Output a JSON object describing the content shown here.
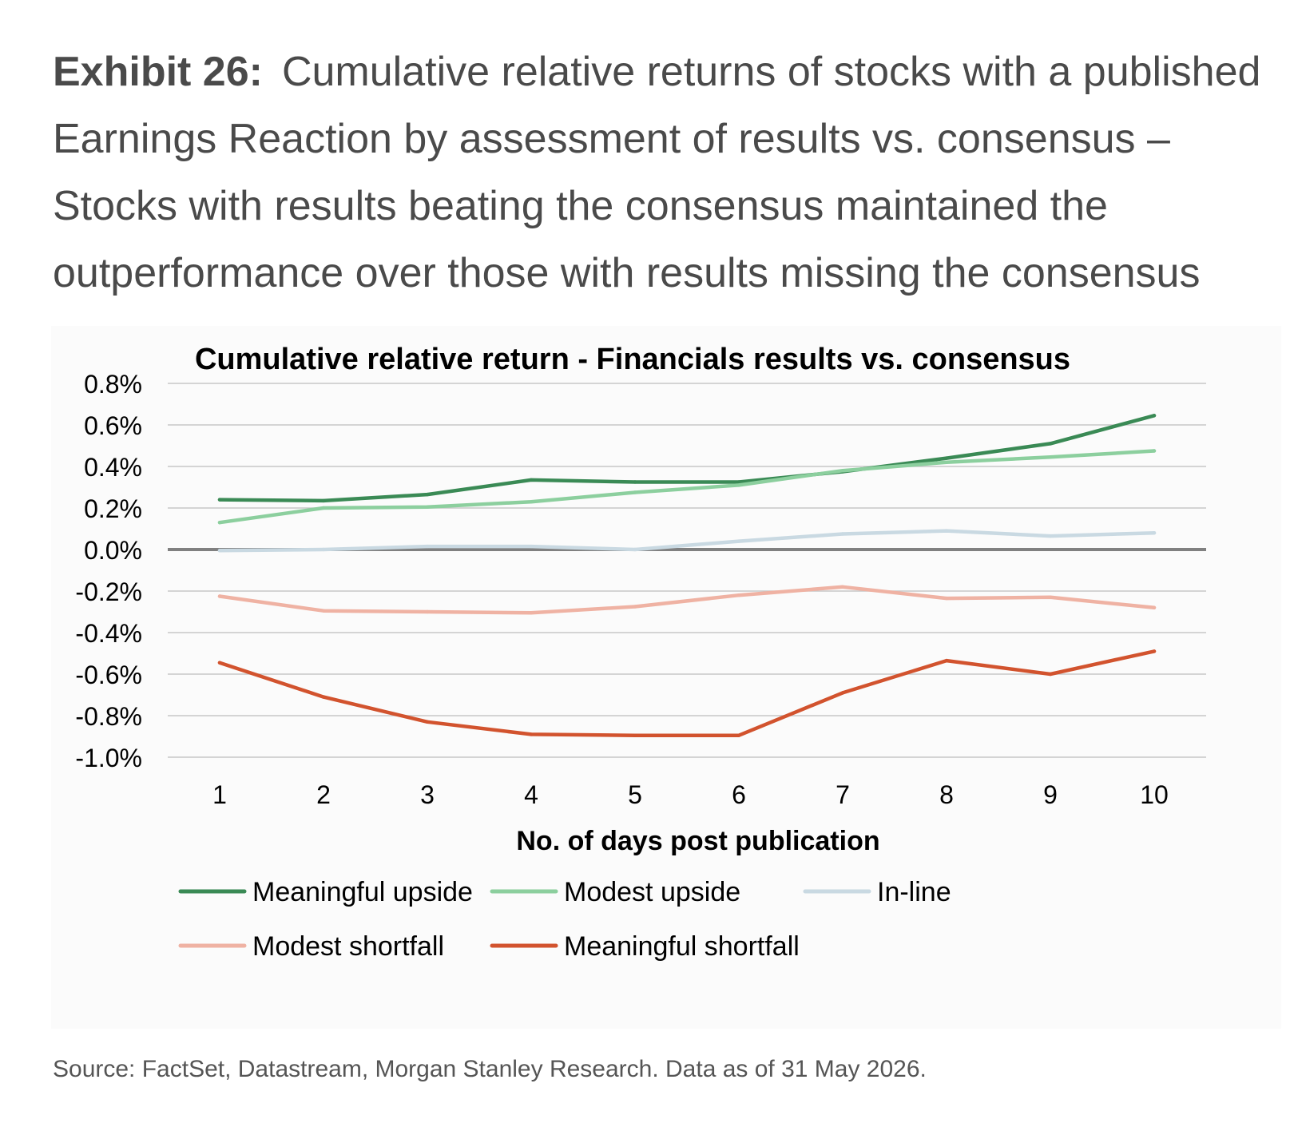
{
  "exhibit": {
    "label": "Exhibit 26:",
    "title": "Cumulative relative returns of stocks with a published Earnings Reaction by assessment of results vs. consensus – Stocks with results beating the consensus maintained the outperformance over those with results missing the consensus"
  },
  "chart_data": {
    "type": "line",
    "title": "Cumulative relative return - Financials results vs. consensus",
    "xlabel": "No. of days post publication",
    "ylabel": "",
    "x": [
      1,
      2,
      3,
      4,
      5,
      6,
      7,
      8,
      9,
      10
    ],
    "x_tick_labels": [
      "1",
      "2",
      "3",
      "4",
      "5",
      "6",
      "7",
      "8",
      "9",
      "10"
    ],
    "ylim": [
      -1.0,
      0.8
    ],
    "y_ticks": [
      0.8,
      0.6,
      0.4,
      0.2,
      0.0,
      -0.2,
      -0.4,
      -0.6,
      -0.8,
      -1.0
    ],
    "y_tick_labels": [
      "0.8%",
      "0.6%",
      "0.4%",
      "0.2%",
      "0.0%",
      "-0.2%",
      "-0.4%",
      "-0.6%",
      "-0.8%",
      "-1.0%"
    ],
    "grid": true,
    "legend_position": "bottom",
    "series": [
      {
        "name": "Meaningful upside",
        "color": "#3a8a55",
        "values": [
          0.24,
          0.235,
          0.265,
          0.335,
          0.325,
          0.325,
          0.375,
          0.44,
          0.51,
          0.645
        ]
      },
      {
        "name": "Modest upside",
        "color": "#8ccf9e",
        "values": [
          0.13,
          0.2,
          0.205,
          0.23,
          0.275,
          0.31,
          0.38,
          0.42,
          0.445,
          0.475
        ]
      },
      {
        "name": "In-line",
        "color": "#c9d9e2",
        "values": [
          -0.005,
          0.0,
          0.015,
          0.015,
          0.0,
          0.04,
          0.075,
          0.09,
          0.065,
          0.08
        ]
      },
      {
        "name": "Modest shortfall",
        "color": "#efb2a3",
        "values": [
          -0.225,
          -0.295,
          -0.3,
          -0.305,
          -0.275,
          -0.22,
          -0.18,
          -0.235,
          -0.23,
          -0.28
        ]
      },
      {
        "name": "Meaningful shortfall",
        "color": "#d2532e",
        "values": [
          -0.545,
          -0.71,
          -0.83,
          -0.89,
          -0.895,
          -0.895,
          -0.69,
          -0.535,
          -0.6,
          -0.49
        ]
      }
    ],
    "zero_line_color": "#808080",
    "grid_color": "#c8c8c8"
  },
  "source": "Source: FactSet, Datastream, Morgan Stanley Research. Data as of 31 May 2026."
}
